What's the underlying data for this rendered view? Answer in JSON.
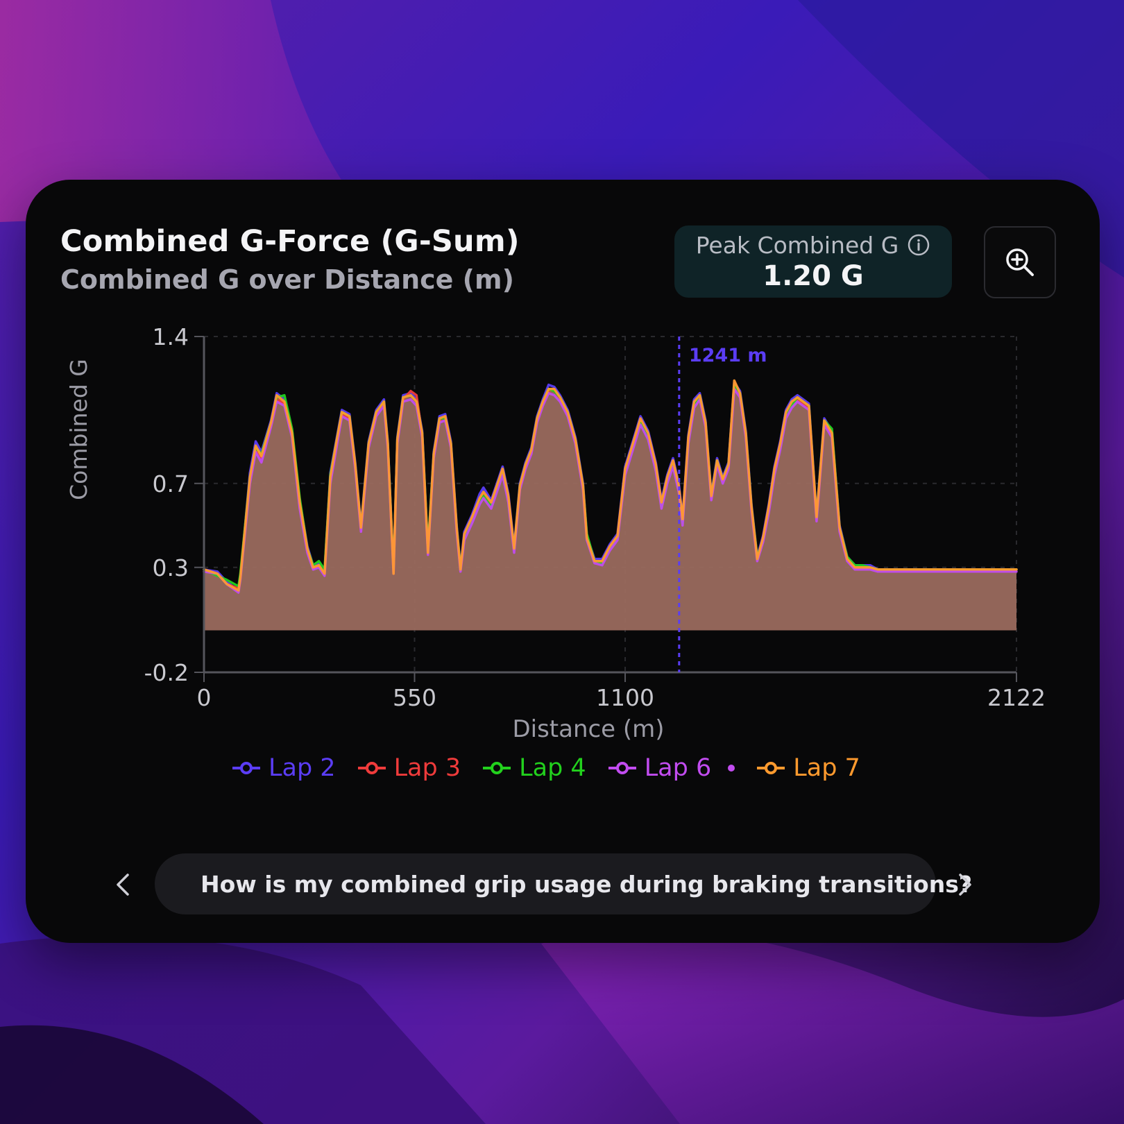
{
  "header": {
    "title": "Combined G-Force (G-Sum)",
    "subtitle": "Combined G over Distance (m)"
  },
  "peak": {
    "label": "Peak Combined G",
    "value": "1.20 G",
    "info_icon": "info-circle-icon"
  },
  "toolbar": {
    "zoom_icon": "zoom-in-icon"
  },
  "chart_data": {
    "type": "area",
    "ylabel": "Combined G",
    "xlabel": "Distance (m)",
    "xlim": [
      0,
      2122
    ],
    "ylim": [
      -0.2,
      1.4
    ],
    "x_ticks": [
      "0",
      "550",
      "1100",
      "2122"
    ],
    "x_tick_values": [
      0,
      550,
      1100,
      2122
    ],
    "y_ticks": [
      "1.4",
      "0.7",
      "0.3",
      "-0.2"
    ],
    "y_tick_values": [
      1.4,
      0.7,
      0.3,
      -0.2
    ],
    "grid": true,
    "fill_color": "#9a6a5e",
    "cursor": {
      "x": 1241,
      "label": "1241 m",
      "color": "#5b3df5"
    },
    "x": [
      0,
      35,
      60,
      90,
      95,
      120,
      135,
      150,
      175,
      190,
      210,
      230,
      250,
      270,
      285,
      300,
      315,
      330,
      345,
      360,
      380,
      395,
      410,
      430,
      450,
      470,
      480,
      495,
      505,
      520,
      540,
      555,
      570,
      585,
      600,
      615,
      630,
      645,
      660,
      670,
      680,
      700,
      720,
      730,
      750,
      765,
      780,
      795,
      810,
      825,
      840,
      855,
      870,
      885,
      900,
      915,
      930,
      950,
      970,
      990,
      1000,
      1020,
      1040,
      1060,
      1080,
      1100,
      1120,
      1140,
      1160,
      1180,
      1195,
      1210,
      1225,
      1240,
      1250,
      1265,
      1280,
      1295,
      1310,
      1325,
      1340,
      1355,
      1370,
      1385,
      1400,
      1415,
      1430,
      1445,
      1460,
      1475,
      1490,
      1505,
      1520,
      1535,
      1550,
      1565,
      1580,
      1600,
      1620,
      1640,
      1660,
      1680,
      1700,
      1720,
      1740,
      1760,
      1780,
      1800,
      1820,
      1835,
      1850,
      1865,
      1880,
      1900,
      1920,
      1940,
      1955,
      1970,
      1990,
      2010,
      2030,
      2050,
      2070,
      2090,
      2110,
      2122
    ],
    "series": [
      {
        "name": "Lap 2",
        "color": "#5b3df5",
        "values": [
          0.29,
          0.28,
          0.23,
          0.19,
          0.25,
          0.75,
          0.9,
          0.85,
          1.0,
          1.13,
          1.1,
          0.95,
          0.62,
          0.4,
          0.31,
          0.32,
          0.28,
          0.75,
          0.9,
          1.05,
          1.03,
          0.8,
          0.5,
          0.9,
          1.05,
          1.1,
          0.9,
          0.28,
          0.92,
          1.12,
          1.13,
          1.1,
          0.95,
          0.38,
          0.85,
          1.02,
          1.03,
          0.9,
          0.5,
          0.3,
          0.47,
          0.55,
          0.65,
          0.68,
          0.62,
          0.7,
          0.78,
          0.65,
          0.4,
          0.7,
          0.8,
          0.87,
          1.02,
          1.1,
          1.17,
          1.16,
          1.12,
          1.05,
          0.92,
          0.7,
          0.45,
          0.34,
          0.34,
          0.41,
          0.46,
          0.78,
          0.9,
          1.02,
          0.95,
          0.8,
          0.62,
          0.74,
          0.82,
          0.7,
          0.54,
          0.93,
          1.1,
          1.13,
          1.0,
          0.65,
          0.82,
          0.73,
          0.8,
          1.18,
          1.14,
          0.95,
          0.6,
          0.35,
          0.45,
          0.6,
          0.78,
          0.9,
          1.05,
          1.1,
          1.12,
          1.1,
          1.08,
          0.55,
          1.01,
          0.95,
          0.5,
          0.35,
          0.31,
          0.31,
          0.31,
          0.29,
          0.29,
          0.29,
          0.29,
          0.29,
          0.29,
          0.29,
          0.29,
          0.29,
          0.29,
          0.29,
          0.29,
          0.29,
          0.29,
          0.29,
          0.29,
          0.29,
          0.29,
          0.29,
          0.29,
          0.29
        ]
      },
      {
        "name": "Lap 3",
        "color": "#ef3b3b",
        "values": [
          0.29,
          0.27,
          0.22,
          0.2,
          0.26,
          0.72,
          0.86,
          0.82,
          0.98,
          1.1,
          1.08,
          0.93,
          0.6,
          0.38,
          0.3,
          0.31,
          0.27,
          0.72,
          0.88,
          1.03,
          1.01,
          0.78,
          0.48,
          0.88,
          1.03,
          1.08,
          0.88,
          0.28,
          0.9,
          1.1,
          1.14,
          1.12,
          0.93,
          0.37,
          0.83,
          1.0,
          1.02,
          0.88,
          0.48,
          0.29,
          0.45,
          0.53,
          0.62,
          0.65,
          0.6,
          0.68,
          0.76,
          0.63,
          0.38,
          0.68,
          0.78,
          0.85,
          1.0,
          1.08,
          1.14,
          1.15,
          1.1,
          1.03,
          0.9,
          0.68,
          0.44,
          0.33,
          0.33,
          0.4,
          0.45,
          0.76,
          0.88,
          1.0,
          0.93,
          0.78,
          0.6,
          0.72,
          0.8,
          0.68,
          0.52,
          0.91,
          1.08,
          1.11,
          0.98,
          0.63,
          0.8,
          0.71,
          0.78,
          1.16,
          1.12,
          0.93,
          0.58,
          0.34,
          0.44,
          0.58,
          0.76,
          0.88,
          1.03,
          1.08,
          1.1,
          1.08,
          1.06,
          0.53,
          0.99,
          0.93,
          0.48,
          0.34,
          0.3,
          0.3,
          0.3,
          0.29,
          0.29,
          0.29,
          0.29,
          0.29,
          0.29,
          0.29,
          0.29,
          0.29,
          0.29,
          0.29,
          0.29,
          0.29,
          0.29,
          0.29,
          0.29,
          0.29,
          0.29,
          0.29,
          0.29,
          0.29
        ]
      },
      {
        "name": "Lap 4",
        "color": "#22d11d",
        "values": [
          0.29,
          0.26,
          0.24,
          0.21,
          0.27,
          0.73,
          0.87,
          0.84,
          0.99,
          1.11,
          1.12,
          0.96,
          0.63,
          0.39,
          0.31,
          0.33,
          0.29,
          0.74,
          0.89,
          1.04,
          1.02,
          0.79,
          0.49,
          0.89,
          1.04,
          1.09,
          0.89,
          0.29,
          0.91,
          1.11,
          1.12,
          1.09,
          0.94,
          0.39,
          0.84,
          1.01,
          1.01,
          0.89,
          0.49,
          0.3,
          0.44,
          0.52,
          0.61,
          0.64,
          0.59,
          0.67,
          0.75,
          0.62,
          0.39,
          0.69,
          0.79,
          0.86,
          1.01,
          1.09,
          1.15,
          1.14,
          1.11,
          1.04,
          0.91,
          0.69,
          0.46,
          0.33,
          0.32,
          0.39,
          0.44,
          0.75,
          0.87,
          0.99,
          0.92,
          0.77,
          0.59,
          0.71,
          0.79,
          0.67,
          0.51,
          0.9,
          1.07,
          1.12,
          0.99,
          0.64,
          0.81,
          0.72,
          0.79,
          1.17,
          1.13,
          0.94,
          0.59,
          0.35,
          0.43,
          0.57,
          0.75,
          0.87,
          1.02,
          1.07,
          1.11,
          1.09,
          1.07,
          0.54,
          1.0,
          0.96,
          0.49,
          0.35,
          0.31,
          0.31,
          0.3,
          0.29,
          0.29,
          0.29,
          0.29,
          0.29,
          0.29,
          0.29,
          0.29,
          0.29,
          0.29,
          0.29,
          0.29,
          0.29,
          0.29,
          0.29,
          0.29,
          0.29,
          0.29,
          0.29,
          0.29,
          0.29
        ]
      },
      {
        "name": "Lap 6",
        "color": "#c24cf0",
        "active": true,
        "values": [
          0.28,
          0.27,
          0.22,
          0.18,
          0.24,
          0.7,
          0.85,
          0.8,
          0.97,
          1.09,
          1.07,
          0.92,
          0.58,
          0.37,
          0.29,
          0.3,
          0.26,
          0.7,
          0.86,
          1.02,
          1.0,
          0.77,
          0.47,
          0.87,
          1.02,
          1.07,
          0.87,
          0.27,
          0.89,
          1.09,
          1.1,
          1.07,
          0.92,
          0.36,
          0.82,
          0.99,
          1.0,
          0.87,
          0.47,
          0.28,
          0.43,
          0.51,
          0.6,
          0.63,
          0.58,
          0.66,
          0.74,
          0.61,
          0.37,
          0.67,
          0.77,
          0.84,
          0.99,
          1.07,
          1.13,
          1.12,
          1.09,
          1.02,
          0.89,
          0.67,
          0.43,
          0.32,
          0.31,
          0.38,
          0.43,
          0.74,
          0.86,
          0.98,
          0.91,
          0.76,
          0.58,
          0.7,
          0.78,
          0.66,
          0.5,
          0.89,
          1.06,
          1.1,
          0.97,
          0.62,
          0.79,
          0.7,
          0.77,
          1.15,
          1.11,
          0.92,
          0.57,
          0.33,
          0.42,
          0.56,
          0.74,
          0.86,
          1.01,
          1.06,
          1.09,
          1.07,
          1.05,
          0.52,
          0.98,
          0.92,
          0.47,
          0.33,
          0.29,
          0.29,
          0.29,
          0.28,
          0.28,
          0.28,
          0.28,
          0.28,
          0.28,
          0.28,
          0.28,
          0.28,
          0.28,
          0.28,
          0.28,
          0.28,
          0.28,
          0.28,
          0.28,
          0.28,
          0.28,
          0.28,
          0.28,
          0.28
        ]
      },
      {
        "name": "Lap 7",
        "color": "#ff9a2e",
        "values": [
          0.29,
          0.27,
          0.22,
          0.19,
          0.25,
          0.73,
          0.88,
          0.83,
          0.99,
          1.12,
          1.09,
          0.94,
          0.61,
          0.39,
          0.3,
          0.31,
          0.27,
          0.73,
          0.89,
          1.04,
          1.02,
          0.79,
          0.49,
          0.89,
          1.04,
          1.09,
          0.89,
          0.27,
          0.91,
          1.11,
          1.12,
          1.09,
          0.94,
          0.37,
          0.84,
          1.01,
          1.02,
          0.89,
          0.49,
          0.29,
          0.46,
          0.54,
          0.63,
          0.66,
          0.61,
          0.69,
          0.77,
          0.64,
          0.39,
          0.69,
          0.79,
          0.86,
          1.01,
          1.09,
          1.15,
          1.15,
          1.11,
          1.04,
          0.91,
          0.69,
          0.44,
          0.33,
          0.33,
          0.4,
          0.45,
          0.77,
          0.89,
          1.01,
          0.94,
          0.79,
          0.61,
          0.73,
          0.81,
          0.69,
          0.53,
          0.92,
          1.09,
          1.12,
          0.99,
          0.64,
          0.81,
          0.72,
          0.79,
          1.19,
          1.13,
          0.94,
          0.59,
          0.34,
          0.44,
          0.59,
          0.77,
          0.89,
          1.04,
          1.09,
          1.11,
          1.09,
          1.07,
          0.54,
          1.0,
          0.94,
          0.49,
          0.34,
          0.3,
          0.3,
          0.3,
          0.29,
          0.29,
          0.29,
          0.29,
          0.29,
          0.29,
          0.29,
          0.29,
          0.29,
          0.29,
          0.29,
          0.29,
          0.29,
          0.29,
          0.29,
          0.29,
          0.29,
          0.29,
          0.29,
          0.29,
          0.29
        ]
      }
    ]
  },
  "suggestion": {
    "text": "How is my combined grip usage during braking transitions?",
    "icon": "sparkle-icon"
  },
  "nav": {
    "prev_icon": "chevron-left-icon",
    "next_icon": "chevron-right-icon"
  }
}
